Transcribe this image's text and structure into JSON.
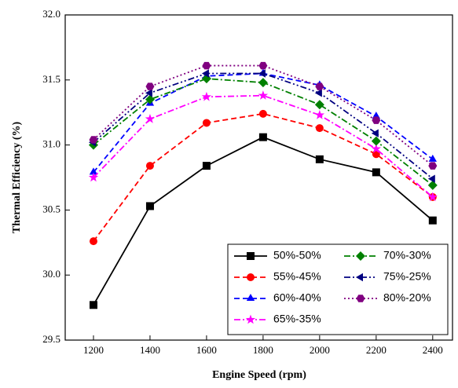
{
  "chart_data": {
    "type": "line",
    "x_label": "Engine Speed (rpm)",
    "y_label": "Thermal Efficiency (%)",
    "x": [
      1200,
      1400,
      1600,
      1800,
      2000,
      2200,
      2400
    ],
    "xlim": [
      1100,
      2470
    ],
    "xticks": [
      1200,
      1400,
      1600,
      1800,
      2000,
      2200,
      2400
    ],
    "ylim": [
      29.5,
      32.0
    ],
    "yticks": [
      29.5,
      {
        "value": 30,
        "label": "30.0"
      },
      30.5,
      {
        "value": 31,
        "label": "31.0"
      },
      31.5,
      {
        "value": 32,
        "label": "32.0"
      }
    ],
    "grid": false,
    "legend_position": "lower right",
    "series": [
      {
        "name": "50%-50%",
        "color": "#000000",
        "marker": "square",
        "dash": "solid",
        "values": [
          29.77,
          30.53,
          30.84,
          31.06,
          30.89,
          30.79,
          30.42
        ]
      },
      {
        "name": "55%-45%",
        "color": "#ff0000",
        "marker": "circle",
        "dash": "dashed",
        "values": [
          30.26,
          30.84,
          31.17,
          31.24,
          31.13,
          30.93,
          30.6
        ]
      },
      {
        "name": "60%-40%",
        "color": "#0000ff",
        "marker": "triangle-up",
        "dash": "dashed",
        "values": [
          30.79,
          31.32,
          31.53,
          31.55,
          31.46,
          31.22,
          30.89
        ]
      },
      {
        "name": "65%-35%",
        "color": "#ff00ff",
        "marker": "star",
        "dash": "dashdot",
        "values": [
          30.75,
          31.2,
          31.37,
          31.38,
          31.23,
          30.97,
          30.6
        ]
      },
      {
        "name": "70%-30%",
        "color": "#008000",
        "marker": "diamond",
        "dash": "dashdot",
        "values": [
          31.0,
          31.35,
          31.51,
          31.48,
          31.31,
          31.03,
          30.69
        ]
      },
      {
        "name": "75%-25%",
        "color": "#000080",
        "marker": "triangle-left",
        "dash": "dashdotdot",
        "values": [
          31.02,
          31.4,
          31.55,
          31.55,
          31.4,
          31.09,
          30.74
        ]
      },
      {
        "name": "80%-20%",
        "color": "#800080",
        "marker": "hexagon",
        "dash": "dotted",
        "values": [
          31.04,
          31.45,
          31.61,
          31.61,
          31.45,
          31.19,
          30.84
        ]
      }
    ]
  }
}
